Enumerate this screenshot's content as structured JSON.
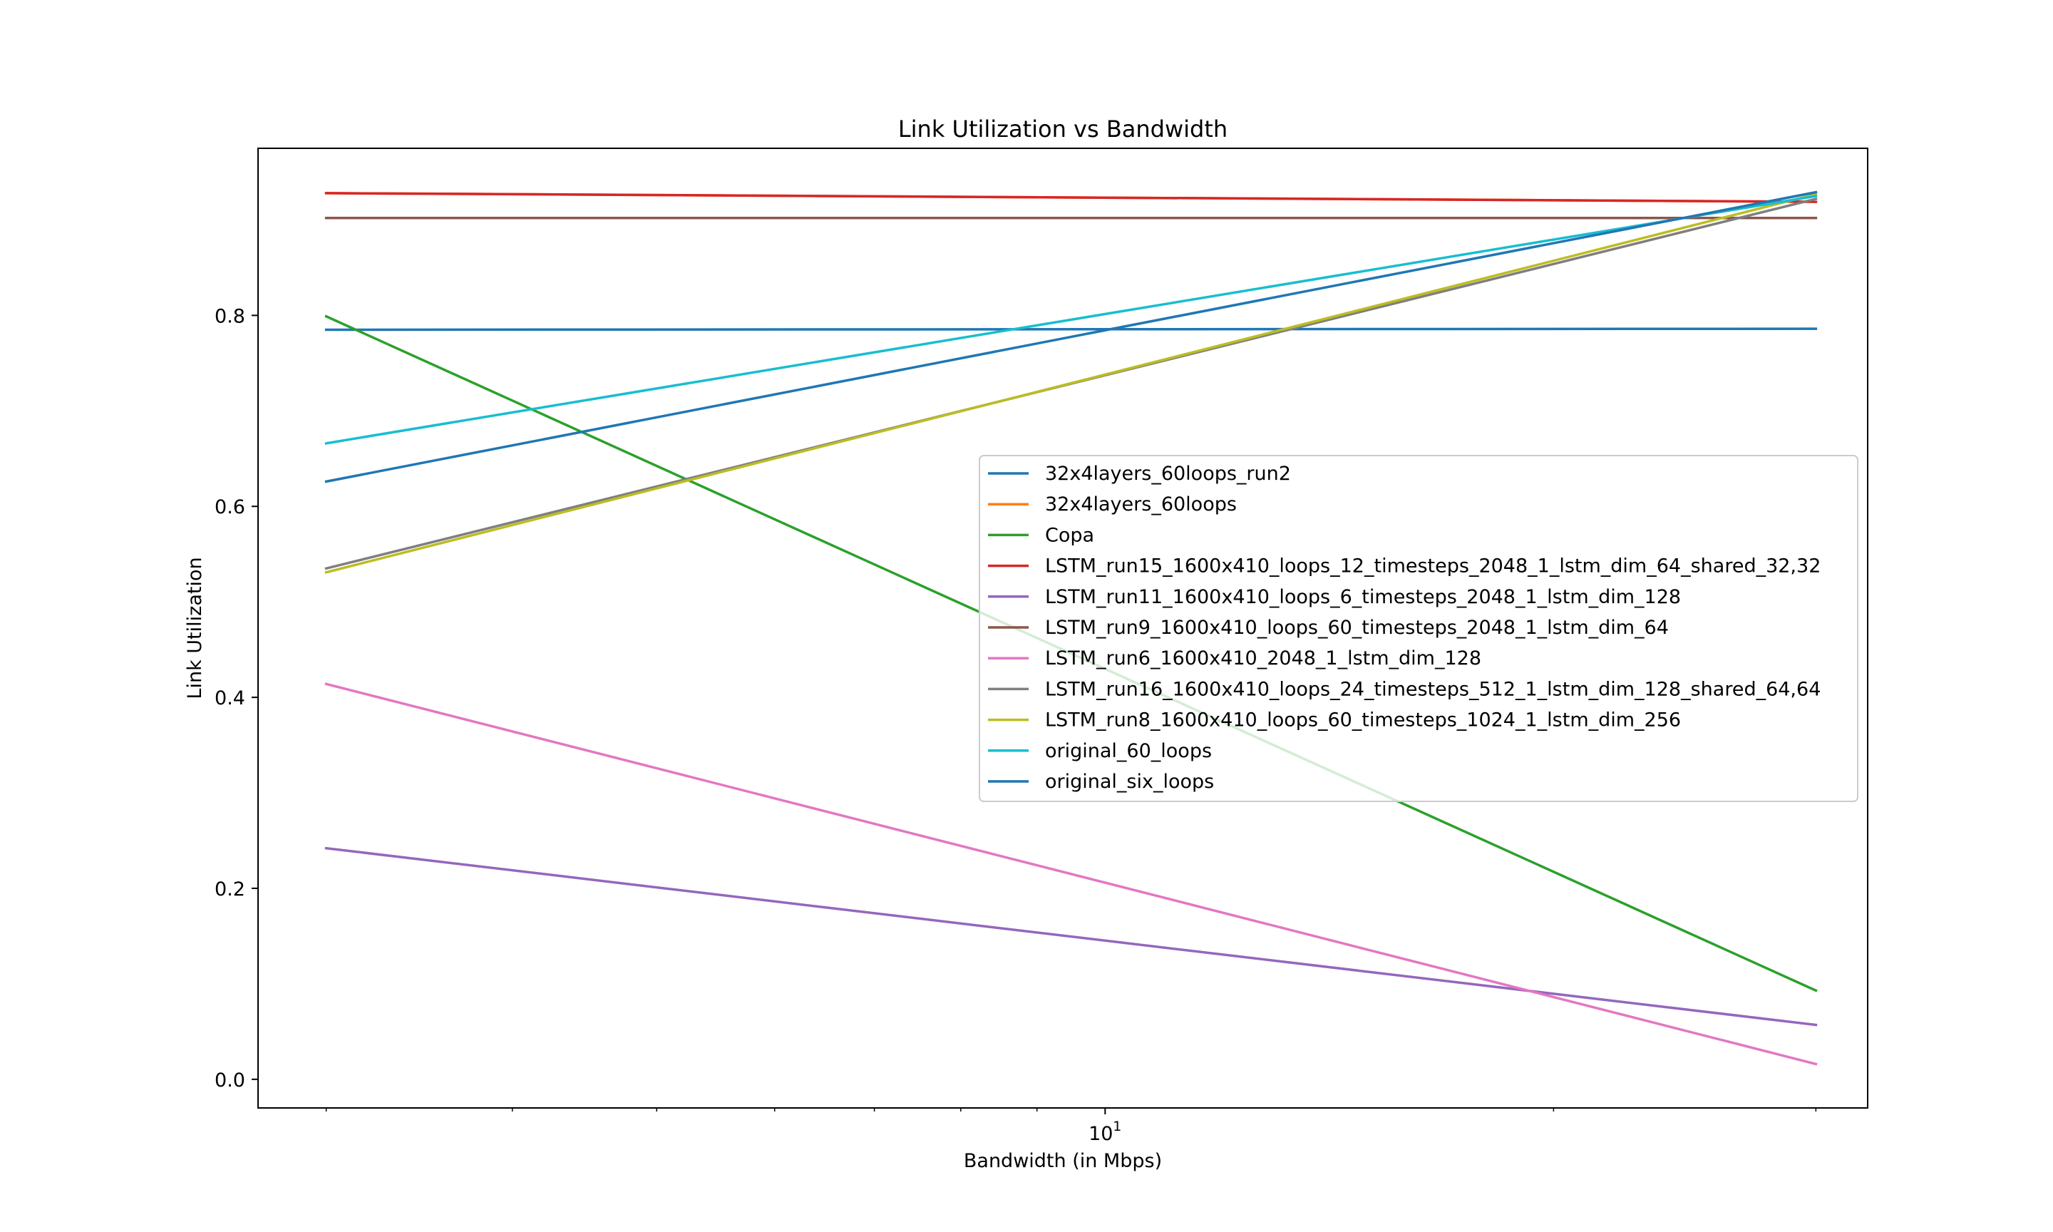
{
  "chart_data": {
    "type": "line",
    "title": "Link Utilization vs Bandwidth",
    "xlabel": "Bandwidth (in Mbps)",
    "ylabel": "Link Utilization",
    "xscale": "log",
    "xlim": [
      2.7,
      32.5
    ],
    "ylim": [
      -0.03,
      0.975
    ],
    "x_ticks": [
      {
        "value": 10,
        "base": "10",
        "exp": "1"
      }
    ],
    "y_ticks": [
      0.0,
      0.2,
      0.4,
      0.6,
      0.8
    ],
    "y_tick_labels": [
      "0.0",
      "0.2",
      "0.4",
      "0.6",
      "0.8"
    ],
    "x": [
      3,
      30
    ],
    "grid": false,
    "legend_position": "center-right",
    "series": [
      {
        "name": "32x4layers_60loops_run2",
        "color": "#1f77b4",
        "values": [
          0.785,
          0.786
        ]
      },
      {
        "name": "32x4layers_60loops",
        "color": "#ff7f0e",
        "values": [
          0.928,
          0.919
        ]
      },
      {
        "name": "Copa",
        "color": "#2ca02c",
        "values": [
          0.799,
          0.093
        ]
      },
      {
        "name": "LSTM_run15_1600x410_loops_12_timesteps_2048_1_lstm_dim_64_shared_32,32",
        "color": "#d62728",
        "values": [
          0.928,
          0.919
        ]
      },
      {
        "name": "LSTM_run11_1600x410_loops_6_timesteps_2048_1_lstm_dim_128",
        "color": "#9467bd",
        "values": [
          0.242,
          0.057
        ]
      },
      {
        "name": "LSTM_run9_1600x410_loops_60_timesteps_2048_1_lstm_dim_64",
        "color": "#8c564b",
        "values": [
          0.902,
          0.902
        ]
      },
      {
        "name": "LSTM_run6_1600x410_2048_1_lstm_dim_128",
        "color": "#e377c2",
        "values": [
          0.414,
          0.016
        ]
      },
      {
        "name": "LSTM_run16_1600x410_loops_24_timesteps_512_1_lstm_dim_128_shared_64,64",
        "color": "#7f7f7f",
        "values": [
          0.535,
          0.922
        ]
      },
      {
        "name": "LSTM_run8_1600x410_loops_60_timesteps_1024_1_lstm_dim_256",
        "color": "#bcbd22",
        "values": [
          0.531,
          0.927
        ]
      },
      {
        "name": "original_60_loops",
        "color": "#17becf",
        "values": [
          0.666,
          0.925
        ]
      },
      {
        "name": "original_six_loops",
        "color": "#1f77b4",
        "values": [
          0.626,
          0.929
        ]
      }
    ]
  }
}
